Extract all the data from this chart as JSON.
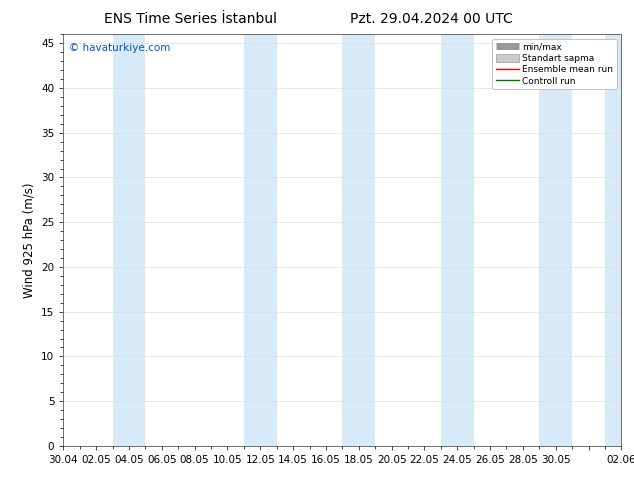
{
  "title_left": "ENS Time Series İstanbul",
  "title_right": "Pzt. 29.04.2024 00 UTC",
  "ylabel": "Wind 925 hPa (m/s)",
  "watermark": "© havaturkiye.com",
  "ylim": [
    0,
    46
  ],
  "yticks": [
    0,
    5,
    10,
    15,
    20,
    25,
    30,
    35,
    40,
    45
  ],
  "xtick_labels": [
    "30.04",
    "02.05",
    "04.05",
    "06.05",
    "08.05",
    "10.05",
    "12.05",
    "14.05",
    "16.05",
    "18.05",
    "20.05",
    "22.05",
    "24.05",
    "26.05",
    "28.05",
    "30.05",
    "",
    "02.06"
  ],
  "xtick_positions": [
    0,
    2,
    4,
    6,
    8,
    10,
    12,
    14,
    16,
    18,
    20,
    22,
    24,
    26,
    28,
    30,
    32,
    34
  ],
  "shade_bands": [
    [
      3,
      5
    ],
    [
      11,
      13
    ],
    [
      17,
      19
    ],
    [
      23,
      25
    ],
    [
      29,
      31
    ],
    [
      33,
      35
    ]
  ],
  "shade_color": "#d6eaf8",
  "bg_color": "#ffffff",
  "title_fontsize": 10,
  "tick_fontsize": 7.5,
  "ylabel_fontsize": 8.5,
  "watermark_color": "#0055cc",
  "legend_items": [
    "min/max",
    "Standart sapma",
    "Ensemble mean run",
    "Controll run"
  ],
  "legend_colors": [
    "#999999",
    "#cccccc",
    "#ff0000",
    "#007700"
  ]
}
